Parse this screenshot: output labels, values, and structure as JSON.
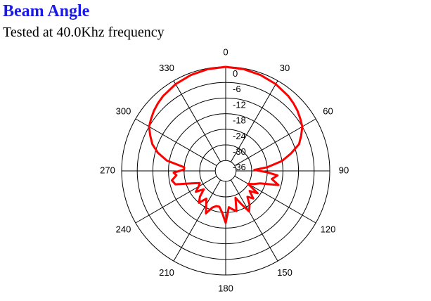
{
  "header": {
    "title": "Beam Angle",
    "subtitle": "Tested at 40.0Khz frequency"
  },
  "colors": {
    "title": "#1a1ae6",
    "grid": "#000000",
    "trace": "#ff0000"
  },
  "chart_data": {
    "type": "polar-line",
    "title": "",
    "angle_unit": "degrees",
    "angle_zero": "top",
    "angle_direction": "clockwise",
    "angle_ticks": [
      0,
      30,
      60,
      90,
      120,
      150,
      180,
      210,
      240,
      270,
      300,
      330
    ],
    "angle_tick_labels": [
      "0",
      "30",
      "60",
      "90",
      "120",
      "150",
      "180",
      "210",
      "240",
      "270",
      "300",
      "330"
    ],
    "radial_unit": "dB",
    "radial_range": [
      -40,
      0
    ],
    "radial_ticks": [
      0,
      -6,
      -12,
      -18,
      -24,
      -30,
      -36
    ],
    "radial_tick_labels": [
      "0",
      "-6",
      "-12",
      "-18",
      "-24",
      "-30",
      "-36"
    ],
    "grid": true,
    "series": [
      {
        "color": "#ff0000",
        "angles": [
          0,
          10,
          20,
          30,
          40,
          45,
          50,
          55,
          60,
          65,
          70,
          75,
          80,
          85,
          88,
          92,
          95,
          100,
          105,
          110,
          115,
          120,
          125,
          130,
          135,
          140,
          145,
          150,
          155,
          160,
          165,
          170,
          175,
          180,
          185,
          190,
          195,
          200,
          205,
          210,
          215,
          220,
          225,
          230,
          235,
          240,
          245,
          250,
          255,
          260,
          265,
          268,
          272,
          275,
          280,
          285,
          290,
          295,
          300,
          305,
          310,
          315,
          320,
          330,
          340,
          350,
          360
        ],
        "values": [
          0,
          -0.3,
          -0.8,
          -1.5,
          -2.5,
          -3.2,
          -4,
          -5,
          -6,
          -8,
          -10,
          -14,
          -18,
          -24,
          -29,
          -24,
          -20,
          -22,
          -19,
          -26,
          -28,
          -30,
          -25,
          -28,
          -25,
          -27,
          -24,
          -22,
          -26,
          -29,
          -24,
          -25,
          -26,
          -20,
          -24,
          -26,
          -26,
          -25,
          -22,
          -25,
          -27,
          -24,
          -26,
          -29,
          -26,
          -28,
          -29,
          -26,
          -20,
          -19,
          -21,
          -20,
          -24,
          -24,
          -17,
          -13,
          -10,
          -8,
          -6,
          -5,
          -4,
          -3.2,
          -2.5,
          -1.5,
          -0.8,
          -0.3,
          0
        ]
      }
    ]
  }
}
